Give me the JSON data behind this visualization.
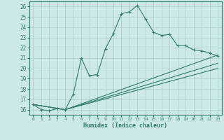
{
  "xlabel": "Humidex (Indice chaleur)",
  "ylabel": "",
  "xlim": [
    -0.5,
    23.5
  ],
  "ylim": [
    15.5,
    26.5
  ],
  "xticks": [
    0,
    1,
    2,
    3,
    4,
    5,
    6,
    7,
    8,
    9,
    10,
    11,
    12,
    13,
    14,
    15,
    16,
    17,
    18,
    19,
    20,
    21,
    22,
    23
  ],
  "yticks": [
    16,
    17,
    18,
    19,
    20,
    21,
    22,
    23,
    24,
    25,
    26
  ],
  "background_color": "#cce8e8",
  "grid_color": "#aacccc",
  "line_color": "#2e7d6e",
  "lines": [
    {
      "x": [
        0,
        1,
        2,
        3,
        4,
        5,
        6,
        7,
        8,
        9,
        10,
        11,
        12,
        13,
        14,
        15,
        16,
        17,
        18,
        19,
        20,
        21,
        22,
        23
      ],
      "y": [
        16.5,
        16.0,
        15.9,
        16.1,
        16.0,
        17.5,
        21.0,
        19.3,
        19.4,
        21.9,
        23.4,
        25.3,
        25.5,
        26.1,
        24.8,
        23.5,
        23.2,
        23.3,
        22.2,
        22.2,
        21.8,
        21.7,
        21.5,
        21.2
      ],
      "marker": true
    },
    {
      "x": [
        0,
        4,
        23
      ],
      "y": [
        16.5,
        16.0,
        21.3
      ],
      "marker": false
    },
    {
      "x": [
        0,
        4,
        23
      ],
      "y": [
        16.5,
        16.0,
        20.5
      ],
      "marker": false
    },
    {
      "x": [
        0,
        4,
        23
      ],
      "y": [
        16.5,
        16.0,
        20.0
      ],
      "marker": false
    }
  ]
}
